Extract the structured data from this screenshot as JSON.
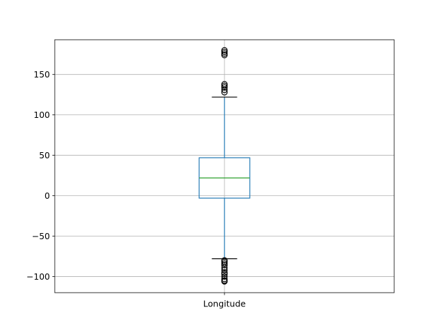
{
  "chart_data": {
    "type": "box",
    "title": "",
    "xlabel": "",
    "ylabel": "",
    "ylim": [
      -120,
      193
    ],
    "grid": true,
    "y_ticks": [
      -100,
      -50,
      0,
      50,
      100,
      150
    ],
    "y_tick_labels": [
      "−100",
      "−50",
      "0",
      "50",
      "100",
      "150"
    ],
    "categories": [
      "Longitude"
    ],
    "boxes": [
      {
        "label": "Longitude",
        "whisker_low": -78,
        "q1": -3,
        "median": 22,
        "q3": 47,
        "whisker_high": 122,
        "outliers": [
          -80,
          -82,
          -84,
          -86,
          -89,
          -92,
          -95,
          -97,
          -100,
          -103,
          -105,
          -106,
          128,
          131,
          134,
          136,
          138,
          174,
          176,
          178,
          180
        ]
      }
    ],
    "colors": {
      "box": "#1f77b4",
      "median": "#2ca02c",
      "cap": "#000000",
      "outlier": "#000000",
      "grid": "#b0b0b0",
      "axes": "#000000"
    }
  }
}
